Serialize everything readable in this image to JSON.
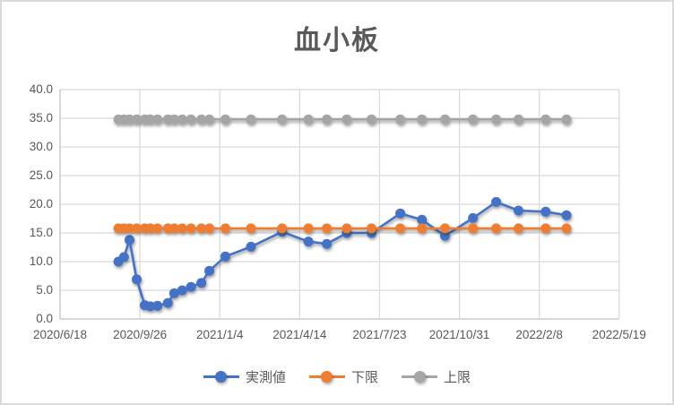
{
  "title": "血小板",
  "colors": {
    "background": "#FFFFFF",
    "chart_border": "#D9D9D9",
    "gridline": "#D9D9D9",
    "axis_line": "#BFBFBF",
    "text": "#595959",
    "series_measured": "#4472C4",
    "series_lower": "#ED7D31",
    "series_upper": "#A5A5A5"
  },
  "chart_data": {
    "type": "line",
    "title": "血小板",
    "grid": true,
    "legend_position": "bottom",
    "x_axis": {
      "start": "2020/6/18",
      "end": "2022/5/19",
      "tick_interval_days": 100,
      "tick_labels": [
        "2020/6/18",
        "2020/9/26",
        "2021/1/4",
        "2021/4/14",
        "2021/7/23",
        "2021/10/31",
        "2022/2/8",
        "2022/5/19"
      ]
    },
    "y_axis": {
      "min": 0,
      "max": 40,
      "step": 5,
      "tick_labels": [
        "0.0",
        "5.0",
        "10.0",
        "15.0",
        "20.0",
        "25.0",
        "30.0",
        "35.0",
        "40.0"
      ]
    },
    "x": [
      "2020/8/30",
      "2020/9/6",
      "2020/9/13",
      "2020/9/22",
      "2020/10/2",
      "2020/10/9",
      "2020/10/18",
      "2020/10/31",
      "2020/11/8",
      "2020/11/18",
      "2020/11/29",
      "2020/12/12",
      "2020/12/22",
      "2021/1/11",
      "2021/2/12",
      "2021/3/23",
      "2021/4/25",
      "2021/5/18",
      "2021/6/12",
      "2021/7/13",
      "2021/8/18",
      "2021/9/14",
      "2021/10/13",
      "2021/11/17",
      "2021/12/16",
      "2022/1/13",
      "2022/2/16",
      "2022/3/14"
    ],
    "series": [
      {
        "name": "実測値",
        "color": "#4472C4",
        "values": [
          10.0,
          10.8,
          13.8,
          6.9,
          2.4,
          2.2,
          2.3,
          2.8,
          4.5,
          5.0,
          5.6,
          6.3,
          8.4,
          10.9,
          12.6,
          15.2,
          13.5,
          13.1,
          15.0,
          15.0,
          18.4,
          17.3,
          14.5,
          17.6,
          20.4,
          18.9,
          18.7,
          18.1
        ]
      },
      {
        "name": "下限",
        "color": "#ED7D31",
        "values": [
          15.8,
          15.8,
          15.8,
          15.8,
          15.8,
          15.8,
          15.8,
          15.8,
          15.8,
          15.8,
          15.8,
          15.8,
          15.8,
          15.8,
          15.8,
          15.8,
          15.8,
          15.8,
          15.8,
          15.8,
          15.8,
          15.8,
          15.8,
          15.8,
          15.8,
          15.8,
          15.8,
          15.8
        ]
      },
      {
        "name": "上限",
        "color": "#A5A5A5",
        "values": [
          34.8,
          34.8,
          34.8,
          34.8,
          34.8,
          34.8,
          34.8,
          34.8,
          34.8,
          34.8,
          34.8,
          34.8,
          34.8,
          34.8,
          34.8,
          34.8,
          34.8,
          34.8,
          34.8,
          34.8,
          34.8,
          34.8,
          34.8,
          34.8,
          34.8,
          34.8,
          34.8,
          34.8
        ]
      }
    ]
  }
}
